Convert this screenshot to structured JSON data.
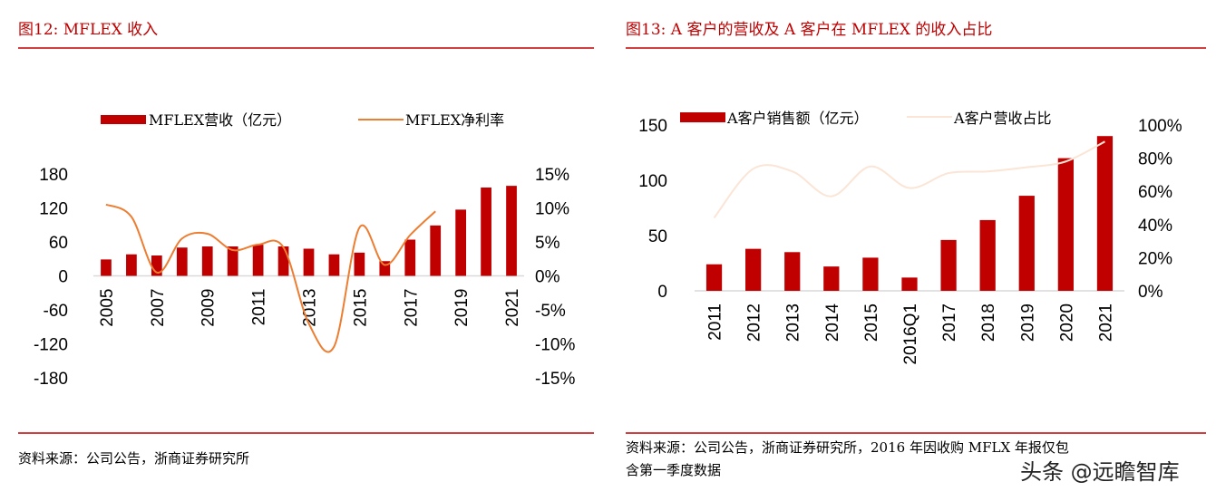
{
  "chart_data": [
    {
      "type": "bar+line",
      "title": "图12:    MFLEX 收入",
      "categories": [
        "2005",
        "2006",
        "2007",
        "2008",
        "2009",
        "2010",
        "2011",
        "2012",
        "2013",
        "2014",
        "2015",
        "2016",
        "2017",
        "2018",
        "2019",
        "2020",
        "2021"
      ],
      "tick_labels_shown": [
        "2005",
        "2007",
        "2009",
        "2011",
        "2013",
        "2015",
        "2017",
        "2019",
        "2021"
      ],
      "series": [
        {
          "name": "MFLEX营收（亿元）",
          "type": "bar",
          "axis": "left",
          "color": "#c00000",
          "values": [
            29,
            38,
            36,
            50,
            52,
            52,
            55,
            52,
            48,
            38,
            41,
            26,
            64,
            89,
            117,
            156,
            159
          ]
        },
        {
          "name": "MFLEX净利率",
          "type": "line",
          "axis": "right",
          "color": "#ed7d31",
          "values": [
            10.5,
            8.7,
            0.5,
            5.5,
            6.2,
            3.8,
            4.6,
            4.2,
            -7,
            -10.4,
            7.1,
            1.6,
            6,
            9.5,
            null,
            null,
            null
          ]
        }
      ],
      "ylim": [
        -180,
        180
      ],
      "yticks": [
        "180",
        "120",
        "60",
        "0",
        "-60",
        "-120",
        "-180"
      ],
      "y2lim": [
        -15,
        15
      ],
      "y2ticks": [
        "15%",
        "10%",
        "5%",
        "0%",
        "-5%",
        "-10%",
        "-15%"
      ],
      "legend": "top",
      "grid": false,
      "source": "资料来源：公司公告，浙商证券研究所"
    },
    {
      "type": "bar+line",
      "title": "图13:    A 客户的营收及 A 客户在 MFLEX 的收入占比",
      "categories": [
        "2011",
        "2012",
        "2013",
        "2014",
        "2015",
        "2016Q1",
        "2017",
        "2018",
        "2019",
        "2020",
        "2021"
      ],
      "series": [
        {
          "name": "A客户销售额（亿元）",
          "type": "bar",
          "axis": "left",
          "color": "#c00000",
          "values": [
            24,
            38,
            35,
            22,
            30,
            12,
            46,
            64,
            86,
            120,
            140
          ]
        },
        {
          "name": "A客户营收占比",
          "type": "line",
          "axis": "right",
          "color": "#fbe5d6",
          "values": [
            44,
            73.6,
            72,
            57,
            75,
            62,
            71,
            72,
            74.5,
            78,
            90
          ]
        }
      ],
      "ylim": [
        0,
        150
      ],
      "yticks": [
        "150",
        "100",
        "50",
        "0"
      ],
      "y2lim": [
        0,
        100
      ],
      "y2ticks": [
        "100%",
        "80%",
        "60%",
        "40%",
        "20%",
        "0%"
      ],
      "legend": "top",
      "grid": false,
      "source_line1": "资料来源：公司公告，浙商证券研究所，2016 年因收购 MFLX 年报仅包",
      "source_line2": "含第一季度数据"
    }
  ],
  "watermark": "头条 @远瞻智库"
}
